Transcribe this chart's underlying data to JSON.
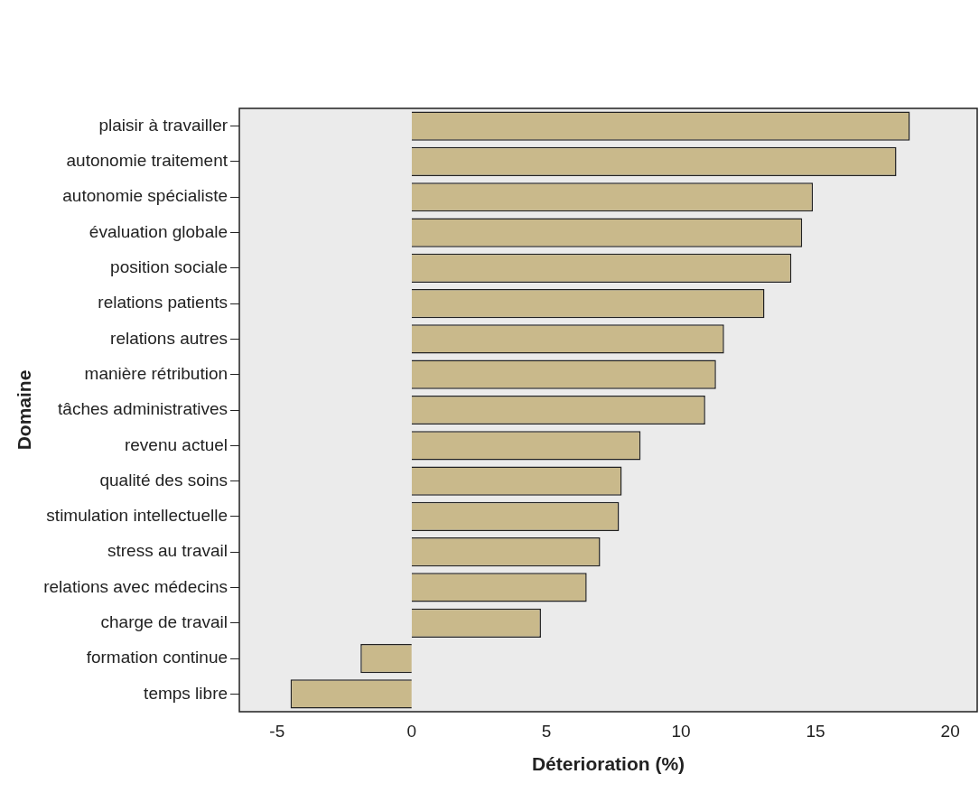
{
  "chart_data": {
    "type": "bar",
    "orientation": "horizontal",
    "xlabel": "Déterioration (%)",
    "ylabel": "Domaine",
    "categories": [
      "plaisir à travailler",
      "autonomie traitement",
      "autonomie spécialiste",
      "évaluation globale",
      "position sociale",
      "relations patients",
      "relations autres",
      "manière rétribution",
      "tâches administratives",
      "revenu actuel",
      "qualité des soins",
      "stimulation intellectuelle",
      "stress au travail",
      "relations avec médecins",
      "charge de travail",
      "formation continue",
      "temps libre"
    ],
    "values": [
      18.5,
      18.0,
      14.9,
      14.5,
      14.1,
      13.1,
      11.6,
      11.3,
      10.9,
      8.5,
      7.8,
      7.7,
      7.0,
      6.5,
      4.8,
      -1.9,
      -4.5
    ],
    "color": "#c9b98b",
    "xlim": [
      -6.4,
      21
    ],
    "xticks": [
      -5,
      0,
      5,
      10,
      15,
      20
    ],
    "grid": false,
    "legend": false
  }
}
